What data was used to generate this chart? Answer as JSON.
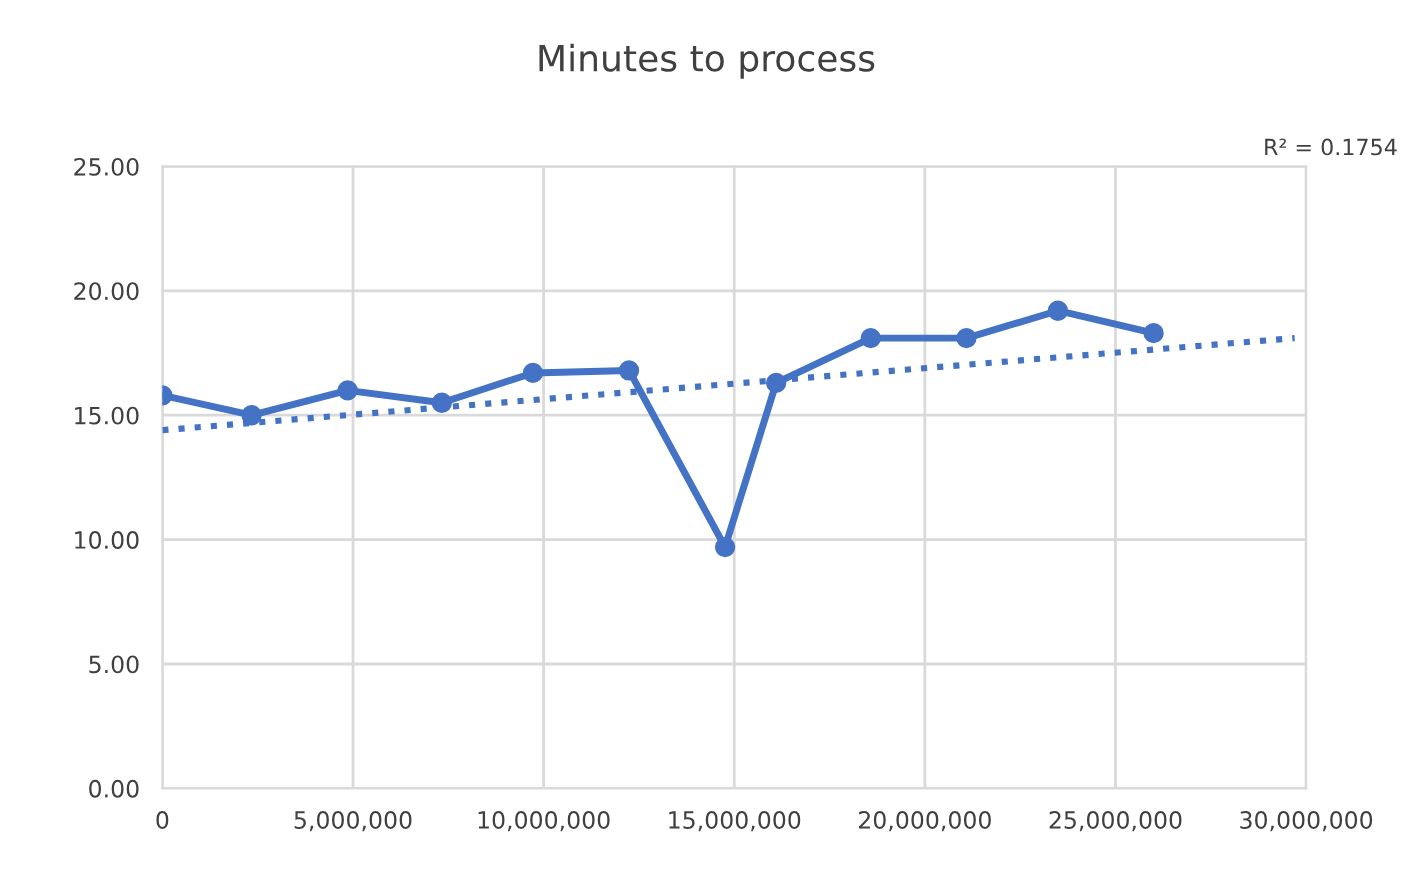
{
  "chart_data": {
    "type": "line",
    "title": "Minutes to process",
    "series": [
      {
        "color": "#4472c4",
        "marker": "circle",
        "line_style": "solid",
        "x": [
          0,
          2340000,
          4860000,
          7330000,
          9720000,
          12240000,
          14760000,
          16100000,
          18580000,
          21090000,
          23490000,
          26000000
        ],
        "values": [
          15.8,
          15.0,
          16.0,
          15.5,
          16.7,
          16.8,
          9.7,
          16.3,
          18.1,
          18.1,
          19.2,
          18.3
        ]
      },
      {
        "color": "#4472c4",
        "marker": "none",
        "line_style": "dotted",
        "x": [
          0,
          29700000
        ],
        "values": [
          14.4,
          18.1
        ]
      }
    ],
    "xlim": [
      0,
      30000000
    ],
    "xticks": [
      {
        "value": 0,
        "label": "0"
      },
      {
        "value": 5000000,
        "label": "5,000,000"
      },
      {
        "value": 10000000,
        "label": "10,000,000"
      },
      {
        "value": 15000000,
        "label": "15,000,000"
      },
      {
        "value": 20000000,
        "label": "20,000,000"
      },
      {
        "value": 25000000,
        "label": "25,000,000"
      },
      {
        "value": 30000000,
        "label": "30,000,000"
      }
    ],
    "ylim": [
      0,
      25
    ],
    "yticks": [
      {
        "value": 0,
        "label": "0.00"
      },
      {
        "value": 5,
        "label": "5.00"
      },
      {
        "value": 10,
        "label": "10.00"
      },
      {
        "value": 15,
        "label": "15.00"
      },
      {
        "value": 20,
        "label": "20.00"
      },
      {
        "value": 25,
        "label": "25.00"
      }
    ],
    "grid": true,
    "annotations": [
      "R² = 0.1754"
    ]
  }
}
